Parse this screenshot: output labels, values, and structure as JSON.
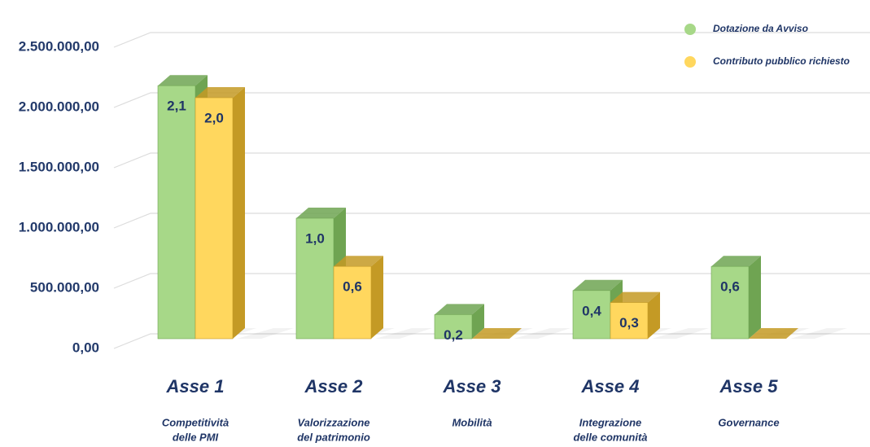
{
  "chart_data": {
    "type": "bar3d",
    "categories": [
      "Asse 1",
      "Asse 2",
      "Asse 3",
      "Asse 4",
      "Asse 5"
    ],
    "descriptions": [
      [
        "Competitività",
        "delle PMI"
      ],
      [
        "Valorizzazione",
        "del patrimonio"
      ],
      [
        "Mobilità"
      ],
      [
        "Integrazione",
        "delle comunità"
      ],
      [
        "Governance"
      ]
    ],
    "series": [
      {
        "name": "Dotazione da Avviso",
        "color": "#a7d888",
        "side": "#6fa452",
        "values": [
          2100000,
          1000000,
          200000,
          400000,
          600000
        ],
        "value_labels": [
          "2,1",
          "1,0",
          "0,2",
          "0,4",
          "0,6"
        ]
      },
      {
        "name": "Contributo pubblico richiesto",
        "color": "#ffd75e",
        "side": "#c49a25",
        "values": [
          2000000,
          600000,
          0,
          300000,
          0
        ],
        "value_labels": [
          "2,0",
          "0,6",
          null,
          "0,3",
          null
        ]
      }
    ],
    "ylim": [
      0,
      2500000
    ],
    "yticks": [
      {
        "value": 0,
        "label": "0,00"
      },
      {
        "value": 500000,
        "label": "500.000,00"
      },
      {
        "value": 1000000,
        "label": "1.000.000,00"
      },
      {
        "value": 1500000,
        "label": "1.500.000,00"
      },
      {
        "value": 2000000,
        "label": "2.000.000,00"
      },
      {
        "value": 2500000,
        "label": "2.500.000,00"
      }
    ],
    "grid": true,
    "legend": "top-right"
  }
}
